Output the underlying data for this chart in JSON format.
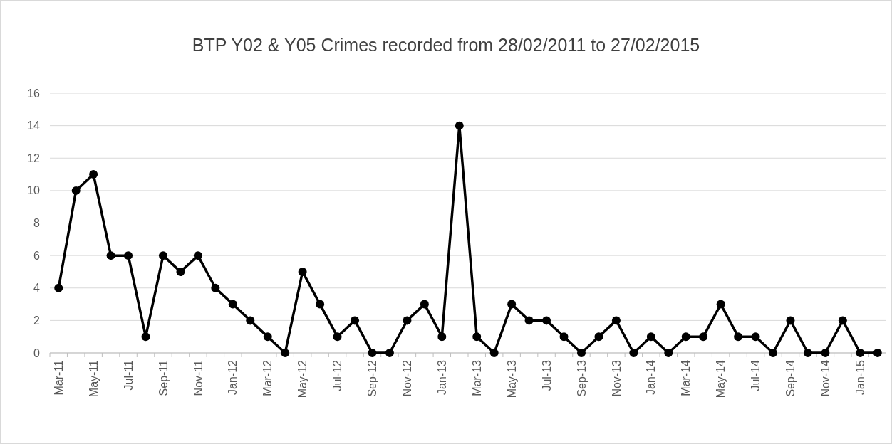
{
  "chart_data": {
    "type": "line",
    "title": "BTP Y02 & Y05 Crimes recorded from 28/02/2011 to 27/02/2015",
    "categories": [
      "Mar-11",
      null,
      "May-11",
      null,
      "Jul-11",
      null,
      "Sep-11",
      null,
      "Nov-11",
      null,
      "Jan-12",
      null,
      "Mar-12",
      null,
      "May-12",
      null,
      "Jul-12",
      null,
      "Sep-12",
      null,
      "Nov-12",
      null,
      "Jan-13",
      null,
      "Mar-13",
      null,
      "May-13",
      null,
      "Jul-13",
      null,
      "Sep-13",
      null,
      "Nov-13",
      null,
      "Jan-14",
      null,
      "Mar-14",
      null,
      "May-14",
      null,
      "Jul-14",
      null,
      "Sep-14",
      null,
      "Nov-14",
      null,
      "Jan-15",
      null
    ],
    "series": [
      {
        "color": "#000000",
        "values": [
          4,
          10,
          11,
          6,
          6,
          1,
          6,
          5,
          6,
          4,
          3,
          2,
          1,
          0,
          5,
          3,
          1,
          2,
          0,
          0,
          2,
          3,
          1,
          14,
          1,
          0,
          3,
          2,
          2,
          1,
          0,
          1,
          2,
          0,
          1,
          0,
          1,
          1,
          3,
          1,
          1,
          0,
          2,
          0,
          0,
          2,
          0,
          0
        ]
      }
    ],
    "ylim": [
      0,
      16
    ],
    "yticks": [
      0,
      2,
      4,
      6,
      8,
      10,
      12,
      14,
      16
    ],
    "grid": "y",
    "marker": "circle",
    "line_style": "solid"
  }
}
